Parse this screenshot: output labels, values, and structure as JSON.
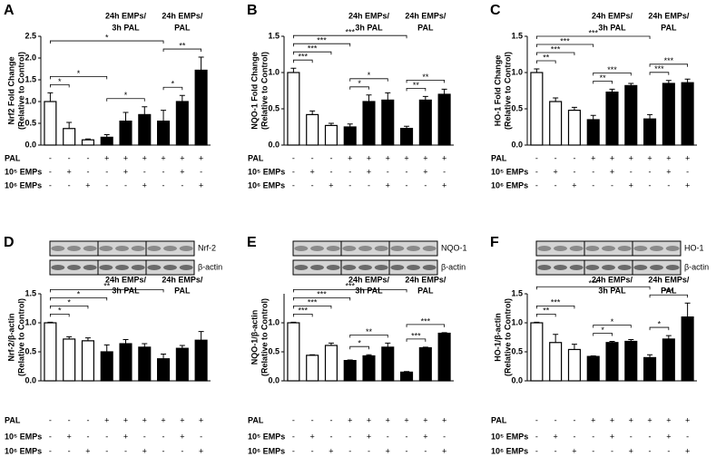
{
  "chart_data": [
    {
      "type": "bar",
      "panel": "A",
      "ylabel": "Nrf2 Fold Change",
      "ylabel_note": "(Relative to Control)",
      "values": [
        1.0,
        0.38,
        0.12,
        0.18,
        0.55,
        0.7,
        0.55,
        1.0,
        1.72
      ],
      "errors": [
        0.2,
        0.14,
        0.02,
        0.06,
        0.2,
        0.18,
        0.25,
        0.14,
        0.3
      ],
      "colors": [
        "#ffffff",
        "#ffffff",
        "#ffffff",
        "#000000",
        "#000000",
        "#000000",
        "#000000",
        "#000000",
        "#000000"
      ],
      "ylim": [
        0,
        2.5
      ],
      "yticks": [
        {
          "value": 0,
          "label": "0.0"
        },
        0.5,
        {
          "value": 1,
          "label": "1.0"
        },
        1.5,
        {
          "value": 2,
          "label": "2.0"
        },
        2.5
      ],
      "groups": [
        {
          "label": [
            "24h EMPs/",
            "3h PAL"
          ],
          "from": 3,
          "to": 5
        },
        {
          "label": [
            "24h EMPs/",
            "PAL"
          ],
          "from": 6,
          "to": 8
        }
      ],
      "brackets": [
        {
          "from": 0,
          "to": 1,
          "label": "*"
        },
        {
          "from": 3,
          "to": 5,
          "label": "*"
        },
        {
          "from": 6,
          "to": 7,
          "label": "*"
        },
        {
          "from": 6,
          "to": 8,
          "label": "**"
        },
        {
          "from": 0,
          "to": 3,
          "label": "*"
        },
        {
          "from": 0,
          "to": 6,
          "label": "*"
        }
      ],
      "treatments": [
        {
          "name": "PAL",
          "marks": [
            "-",
            "-",
            "-",
            "+",
            "+",
            "+",
            "+",
            "+",
            "+"
          ]
        },
        {
          "name": "10⁵ EMPs",
          "marks": [
            "-",
            "+",
            "-",
            "-",
            "+",
            "-",
            "-",
            "+",
            "-"
          ]
        },
        {
          "name": "10⁶ EMPs",
          "marks": [
            "-",
            "-",
            "+",
            "-",
            "-",
            "+",
            "-",
            "-",
            "+"
          ]
        }
      ]
    },
    {
      "type": "bar",
      "panel": "B",
      "ylabel": "NQO-1 Fold Change",
      "ylabel_note": "(Relative to Control)",
      "values": [
        1.0,
        0.42,
        0.27,
        0.25,
        0.6,
        0.62,
        0.23,
        0.62,
        0.7
      ],
      "errors": [
        0.06,
        0.05,
        0.03,
        0.04,
        0.09,
        0.1,
        0.03,
        0.05,
        0.07
      ],
      "colors": [
        "#ffffff",
        "#ffffff",
        "#ffffff",
        "#000000",
        "#000000",
        "#000000",
        "#000000",
        "#000000",
        "#000000"
      ],
      "ylim": [
        0,
        1.5
      ],
      "yticks": [
        {
          "value": 0,
          "label": "0.0"
        },
        0.5,
        {
          "value": 1,
          "label": "1.0"
        },
        1.5
      ],
      "groups": [
        {
          "label": [
            "24h EMPs/",
            "3h PAL"
          ],
          "from": 3,
          "to": 5
        },
        {
          "label": [
            "24h EMPs/",
            "PAL"
          ],
          "from": 6,
          "to": 8
        }
      ],
      "brackets": [
        {
          "from": 0,
          "to": 1,
          "label": "***"
        },
        {
          "from": 0,
          "to": 2,
          "label": "***"
        },
        {
          "from": 3,
          "to": 4,
          "label": "*"
        },
        {
          "from": 3,
          "to": 5,
          "label": "*"
        },
        {
          "from": 6,
          "to": 7,
          "label": "**"
        },
        {
          "from": 6,
          "to": 8,
          "label": "**"
        },
        {
          "from": 0,
          "to": 3,
          "label": "***"
        },
        {
          "from": 0,
          "to": 6,
          "label": "***"
        }
      ],
      "treatments": [
        {
          "name": "PAL",
          "marks": [
            "-",
            "-",
            "-",
            "+",
            "+",
            "+",
            "+",
            "+",
            "+"
          ]
        },
        {
          "name": "10⁵ EMPs",
          "marks": [
            "-",
            "+",
            "-",
            "-",
            "+",
            "-",
            "-",
            "+",
            "-"
          ]
        },
        {
          "name": "10⁶ EMPs",
          "marks": [
            "-",
            "-",
            "+",
            "-",
            "-",
            "+",
            "-",
            "-",
            "+"
          ]
        }
      ]
    },
    {
      "type": "bar",
      "panel": "C",
      "ylabel": "HO-1 Fold Change",
      "ylabel_note": "(Relative to Control)",
      "values": [
        1.0,
        0.6,
        0.48,
        0.35,
        0.73,
        0.82,
        0.36,
        0.85,
        0.86
      ],
      "errors": [
        0.05,
        0.05,
        0.04,
        0.06,
        0.04,
        0.03,
        0.06,
        0.04,
        0.05
      ],
      "colors": [
        "#ffffff",
        "#ffffff",
        "#ffffff",
        "#000000",
        "#000000",
        "#000000",
        "#000000",
        "#000000",
        "#000000"
      ],
      "ylim": [
        0,
        1.5
      ],
      "yticks": [
        {
          "value": 0,
          "label": "0.0"
        },
        0.5,
        {
          "value": 1,
          "label": "1.0"
        },
        1.5
      ],
      "groups": [
        {
          "label": [
            "24h EMPs/",
            "3h PAL"
          ],
          "from": 3,
          "to": 5
        },
        {
          "label": [
            "24h EMPs/",
            "PAL"
          ],
          "from": 6,
          "to": 8
        }
      ],
      "brackets": [
        {
          "from": 0,
          "to": 1,
          "label": "**"
        },
        {
          "from": 0,
          "to": 2,
          "label": "***"
        },
        {
          "from": 3,
          "to": 4,
          "label": "**"
        },
        {
          "from": 3,
          "to": 5,
          "label": "***"
        },
        {
          "from": 6,
          "to": 7,
          "label": "***"
        },
        {
          "from": 6,
          "to": 8,
          "label": "***"
        },
        {
          "from": 0,
          "to": 3,
          "label": "***"
        },
        {
          "from": 0,
          "to": 6,
          "label": "***"
        }
      ],
      "treatments": [
        {
          "name": "PAL",
          "marks": [
            "-",
            "-",
            "-",
            "+",
            "+",
            "+",
            "+",
            "+",
            "+"
          ]
        },
        {
          "name": "10⁵ EMPs",
          "marks": [
            "-",
            "+",
            "-",
            "-",
            "+",
            "-",
            "-",
            "+",
            "-"
          ]
        },
        {
          "name": "10⁶ EMPs",
          "marks": [
            "-",
            "-",
            "+",
            "-",
            "-",
            "+",
            "-",
            "-",
            "+"
          ]
        }
      ]
    },
    {
      "type": "bar",
      "panel": "D",
      "ylabel": "Nrf-2/β-actin",
      "ylabel_note": "(Relative to Control)",
      "blot_labels": [
        "Nrf-2",
        "β-actin"
      ],
      "values": [
        1.0,
        0.72,
        0.69,
        0.5,
        0.64,
        0.58,
        0.38,
        0.56,
        0.7
      ],
      "errors": [
        0.01,
        0.04,
        0.05,
        0.12,
        0.07,
        0.06,
        0.08,
        0.05,
        0.15
      ],
      "colors": [
        "#ffffff",
        "#ffffff",
        "#ffffff",
        "#000000",
        "#000000",
        "#000000",
        "#000000",
        "#000000",
        "#000000"
      ],
      "ylim": [
        0,
        1.5
      ],
      "yticks": [
        {
          "value": 0,
          "label": "0.0"
        },
        0.5,
        {
          "value": 1,
          "label": "1.0"
        },
        1.5
      ],
      "groups": [
        {
          "label": [
            "24h EMPs/",
            "3h PAL"
          ],
          "from": 3,
          "to": 5
        },
        {
          "label": [
            "24h EMPs/",
            "PAL"
          ],
          "from": 6,
          "to": 8
        }
      ],
      "brackets": [
        {
          "from": 0,
          "to": 1,
          "label": "*"
        },
        {
          "from": 0,
          "to": 2,
          "label": "*"
        },
        {
          "from": 0,
          "to": 3,
          "label": "*"
        },
        {
          "from": 0,
          "to": 6,
          "label": "**"
        }
      ],
      "treatments": [
        {
          "name": "PAL",
          "marks": [
            "-",
            "-",
            "-",
            "+",
            "+",
            "+",
            "+",
            "+",
            "+"
          ]
        },
        {
          "name": "10⁵ EMPs",
          "marks": [
            "-",
            "+",
            "-",
            "-",
            "+",
            "-",
            "-",
            "+",
            "-"
          ]
        },
        {
          "name": "10⁶ EMPs",
          "marks": [
            "-",
            "-",
            "+",
            "-",
            "-",
            "+",
            "-",
            "-",
            "+"
          ]
        }
      ]
    },
    {
      "type": "bar",
      "panel": "E",
      "ylabel": "NQO-1/β-actin",
      "ylabel_note": "(Relative to Control)",
      "blot_labels": [
        "NQO-1",
        "β-actin"
      ],
      "values": [
        1.0,
        0.44,
        0.61,
        0.35,
        0.43,
        0.58,
        0.15,
        0.57,
        0.82
      ],
      "errors": [
        0.01,
        0.01,
        0.04,
        0.01,
        0.02,
        0.07,
        0.01,
        0.01,
        0.01
      ],
      "colors": [
        "#ffffff",
        "#ffffff",
        "#ffffff",
        "#000000",
        "#000000",
        "#000000",
        "#000000",
        "#000000",
        "#000000"
      ],
      "ylim": [
        0,
        1.5
      ],
      "yticks": [
        {
          "value": 0,
          "label": "0.0"
        },
        0.5,
        {
          "value": 1,
          "label": "1.0"
        }
      ],
      "groups": [
        {
          "label": [
            "24h EMPs/",
            "3h PAL"
          ],
          "from": 3,
          "to": 5
        },
        {
          "label": [
            "24h EMPs/",
            "PAL"
          ],
          "from": 6,
          "to": 8
        }
      ],
      "brackets": [
        {
          "from": 0,
          "to": 1,
          "label": "***"
        },
        {
          "from": 0,
          "to": 2,
          "label": "***"
        },
        {
          "from": 3,
          "to": 4,
          "label": "*"
        },
        {
          "from": 3,
          "to": 5,
          "label": "**"
        },
        {
          "from": 6,
          "to": 7,
          "label": "***"
        },
        {
          "from": 6,
          "to": 8,
          "label": "***"
        },
        {
          "from": 0,
          "to": 3,
          "label": "***"
        },
        {
          "from": 0,
          "to": 6,
          "label": "***"
        }
      ],
      "treatments": [
        {
          "name": "PAL",
          "marks": [
            "-",
            "-",
            "-",
            "+",
            "+",
            "+",
            "+",
            "+",
            "+"
          ]
        },
        {
          "name": "10⁵ EMPs",
          "marks": [
            "-",
            "+",
            "-",
            "-",
            "+",
            "-",
            "-",
            "+",
            "-"
          ]
        },
        {
          "name": "10⁶ EMPs",
          "marks": [
            "-",
            "-",
            "+",
            "-",
            "-",
            "+",
            "-",
            "-",
            "+"
          ]
        }
      ]
    },
    {
      "type": "bar",
      "panel": "F",
      "ylabel": "HO-1/β-actin",
      "ylabel_note": "(Relative to Control)",
      "blot_labels": [
        "HO-1",
        "β-actin"
      ],
      "values": [
        1.0,
        0.66,
        0.54,
        0.42,
        0.66,
        0.68,
        0.4,
        0.72,
        1.1
      ],
      "errors": [
        0.01,
        0.14,
        0.09,
        0.01,
        0.02,
        0.03,
        0.05,
        0.06,
        0.24
      ],
      "colors": [
        "#ffffff",
        "#ffffff",
        "#ffffff",
        "#000000",
        "#000000",
        "#000000",
        "#000000",
        "#000000",
        "#000000"
      ],
      "ylim": [
        0,
        1.5
      ],
      "yticks": [
        {
          "value": 0,
          "label": "0.0"
        },
        0.5,
        {
          "value": 1,
          "label": "1.0"
        },
        1.5
      ],
      "groups": [
        {
          "label": [
            "24h EMPs/",
            "3h PAL"
          ],
          "from": 3,
          "to": 5
        },
        {
          "label": [
            "24h EMPs/",
            "PAL"
          ],
          "from": 6,
          "to": 8
        }
      ],
      "brackets": [
        {
          "from": 0,
          "to": 1,
          "label": "**"
        },
        {
          "from": 0,
          "to": 2,
          "label": "***"
        },
        {
          "from": 3,
          "to": 4,
          "label": "*"
        },
        {
          "from": 3,
          "to": 5,
          "label": "*"
        },
        {
          "from": 6,
          "to": 7,
          "label": "*"
        },
        {
          "from": 6,
          "to": 8,
          "label": "***"
        },
        {
          "from": 0,
          "to": 6,
          "label": "***"
        }
      ],
      "treatments": [
        {
          "name": "PAL",
          "marks": [
            "-",
            "-",
            "-",
            "+",
            "+",
            "+",
            "+",
            "+",
            "+"
          ]
        },
        {
          "name": "10⁵ EMPs",
          "marks": [
            "-",
            "+",
            "-",
            "-",
            "+",
            "-",
            "-",
            "+",
            "-"
          ]
        },
        {
          "name": "10⁶ EMPs",
          "marks": [
            "-",
            "-",
            "+",
            "-",
            "-",
            "+",
            "-",
            "-",
            "+"
          ]
        }
      ]
    }
  ]
}
